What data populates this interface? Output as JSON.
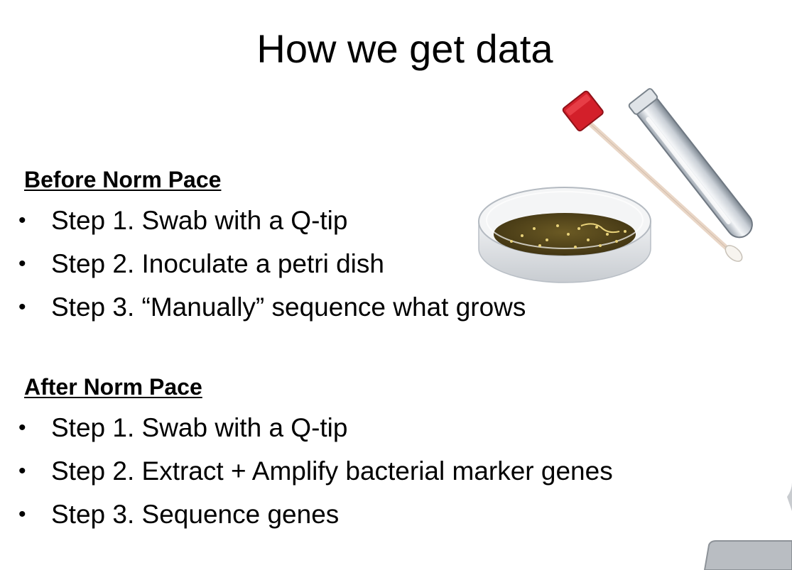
{
  "slide": {
    "title": "How we get data"
  },
  "before": {
    "heading": "Before Norm Pace",
    "steps": [
      "Step 1. Swab with a Q-tip",
      "Step 2. Inoculate a petri dish",
      "Step 3. “Manually” sequence what grows"
    ]
  },
  "after": {
    "heading": "After Norm Pace",
    "steps": [
      "Step 1. Swab with a Q-tip",
      "Step 2. Extract + Amplify bacterial marker genes",
      "Step 3. Sequence genes"
    ]
  },
  "bullet_glyph": "•",
  "illustrations": {
    "petri_dish": "petri-dish-icon",
    "swab": "swab-icon",
    "test_tube": "test-tube-icon",
    "swab_cap_color": "#d31f2a",
    "agar_color": "#5a4a1c",
    "colony_color": "#e8d27a"
  }
}
